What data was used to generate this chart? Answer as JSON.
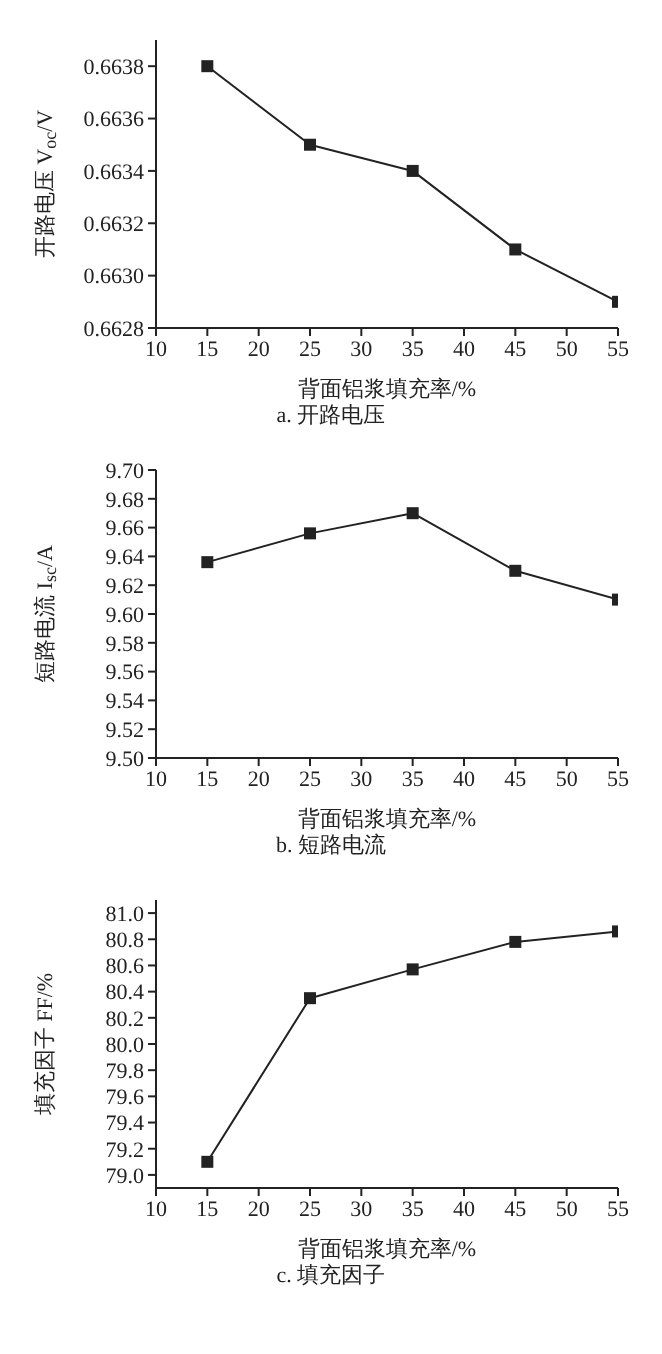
{
  "chart_data": [
    {
      "type": "line",
      "title": "a. 开路电压",
      "xlabel": "背面铝浆填充率/%",
      "ylabel": "开路电压 V$_{oc}$/V",
      "x": [
        15,
        25,
        35,
        45,
        55
      ],
      "series": [
        {
          "color": "#222222",
          "values": [
            0.6638,
            0.6635,
            0.6634,
            0.6631,
            0.6629
          ]
        }
      ],
      "xlim": [
        10,
        55
      ],
      "xticks": [
        10,
        15,
        20,
        25,
        30,
        35,
        40,
        45,
        50,
        55
      ],
      "ylim": [
        0.6628,
        0.6639
      ],
      "yticks": [
        {
          "value": 0.6628,
          "label": "0.6628"
        },
        {
          "value": 0.663,
          "label": "0.6630"
        },
        {
          "value": 0.6632,
          "label": "0.6632"
        },
        {
          "value": 0.6634,
          "label": "0.6634"
        },
        {
          "value": 0.6636,
          "label": "0.6636"
        },
        {
          "value": 0.6638,
          "label": "0.6638"
        }
      ],
      "marker": "square",
      "grid": false,
      "legend": false
    },
    {
      "type": "line",
      "title": "b. 短路电流",
      "xlabel": "背面铝浆填充率/%",
      "ylabel": "短路电流 I$_{sc}$/A",
      "x": [
        15,
        25,
        35,
        45,
        55
      ],
      "series": [
        {
          "color": "#222222",
          "values": [
            9.636,
            9.656,
            9.67,
            9.63,
            9.61
          ]
        }
      ],
      "xlim": [
        10,
        55
      ],
      "xticks": [
        10,
        15,
        20,
        25,
        30,
        35,
        40,
        45,
        50,
        55
      ],
      "ylim": [
        9.5,
        9.7
      ],
      "yticks": [
        {
          "value": 9.5,
          "label": "9.50"
        },
        {
          "value": 9.52,
          "label": "9.52"
        },
        {
          "value": 9.54,
          "label": "9.54"
        },
        {
          "value": 9.56,
          "label": "9.56"
        },
        {
          "value": 9.58,
          "label": "9.58"
        },
        {
          "value": 9.6,
          "label": "9.60"
        },
        {
          "value": 9.62,
          "label": "9.62"
        },
        {
          "value": 9.64,
          "label": "9.64"
        },
        {
          "value": 9.66,
          "label": "9.66"
        },
        {
          "value": 9.68,
          "label": "9.68"
        },
        {
          "value": 9.7,
          "label": "9.70"
        }
      ],
      "marker": "square",
      "grid": false,
      "legend": false
    },
    {
      "type": "line",
      "title": "c. 填充因子",
      "xlabel": "背面铝浆填充率/%",
      "ylabel": "填充因子 FF/%",
      "x": [
        15,
        25,
        35,
        45,
        55
      ],
      "series": [
        {
          "color": "#222222",
          "values": [
            79.1,
            80.35,
            80.57,
            80.78,
            80.86
          ]
        }
      ],
      "xlim": [
        10,
        55
      ],
      "xticks": [
        10,
        15,
        20,
        25,
        30,
        35,
        40,
        45,
        50,
        55
      ],
      "ylim": [
        78.9,
        81.1
      ],
      "yticks": [
        {
          "value": 79,
          "label": "79.0"
        },
        {
          "value": 79.2,
          "label": "79.2"
        },
        {
          "value": 79.4,
          "label": "79.4"
        },
        {
          "value": 79.6,
          "label": "79.6"
        },
        {
          "value": 79.8,
          "label": "79.8"
        },
        {
          "value": 80,
          "label": "80.0"
        },
        {
          "value": 80.2,
          "label": "80.2"
        },
        {
          "value": 80.4,
          "label": "80.4"
        },
        {
          "value": 80.6,
          "label": "80.6"
        },
        {
          "value": 80.8,
          "label": "80.8"
        },
        {
          "value": 81,
          "label": "81.0"
        }
      ],
      "marker": "square",
      "grid": false,
      "legend": false
    }
  ]
}
